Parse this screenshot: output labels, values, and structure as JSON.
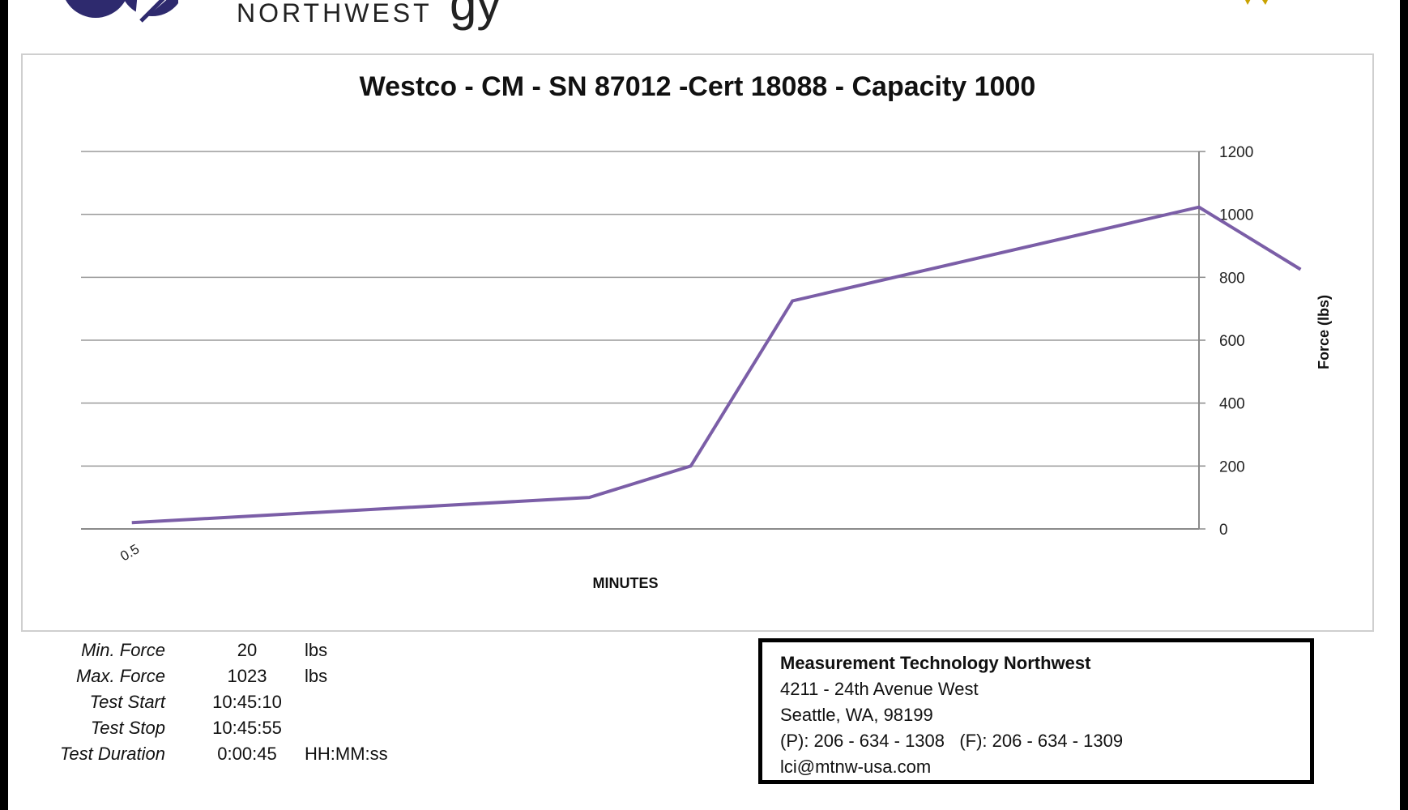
{
  "header": {
    "brand_subline": "NORTHWEST",
    "brand_partial": "gy"
  },
  "chart_data": {
    "type": "line",
    "title": "Westco - CM - SN 87012 -Cert 18088 - Capacity 1000",
    "xlabel": "MINUTES",
    "ylabel": "Force (lbs)",
    "ylim": [
      0,
      1200
    ],
    "yticks": [
      0,
      200,
      400,
      600,
      800,
      1000,
      1200
    ],
    "x_tick_labels": [
      "0.5"
    ],
    "y_axis_side": "right",
    "grid": true,
    "line_color": "#7b5ea7",
    "series": [
      {
        "values": [
          20,
          100,
          200,
          725,
          1023,
          825
        ]
      }
    ],
    "x": [
      0,
      4.5,
      5.5,
      6.5,
      10.5,
      11.5
    ],
    "xlim": [
      -0.5,
      10.5
    ]
  },
  "stats": [
    {
      "label": "Min. Force",
      "value": "20",
      "unit": "lbs"
    },
    {
      "label": "Max. Force",
      "value": "1023",
      "unit": "lbs"
    },
    {
      "label": "Test Start",
      "value": "10:45:10",
      "unit": ""
    },
    {
      "label": "Test Stop",
      "value": "10:45:55",
      "unit": ""
    },
    {
      "label": "Test Duration",
      "value": "0:00:45",
      "unit": "HH:MM:ss"
    }
  ],
  "address": {
    "company": "Measurement Technology Northwest",
    "street": "4211 - 24th Avenue West",
    "city": "Seattle, WA, 98199",
    "phones": "(P): 206 - 634 - 1308   (F): 206 - 634 - 1309",
    "email": "lci@mtnw-usa.com"
  },
  "colors": {
    "line": "#7b5ea7",
    "logo": "#2e2a6e",
    "seal": "#f5c400"
  }
}
